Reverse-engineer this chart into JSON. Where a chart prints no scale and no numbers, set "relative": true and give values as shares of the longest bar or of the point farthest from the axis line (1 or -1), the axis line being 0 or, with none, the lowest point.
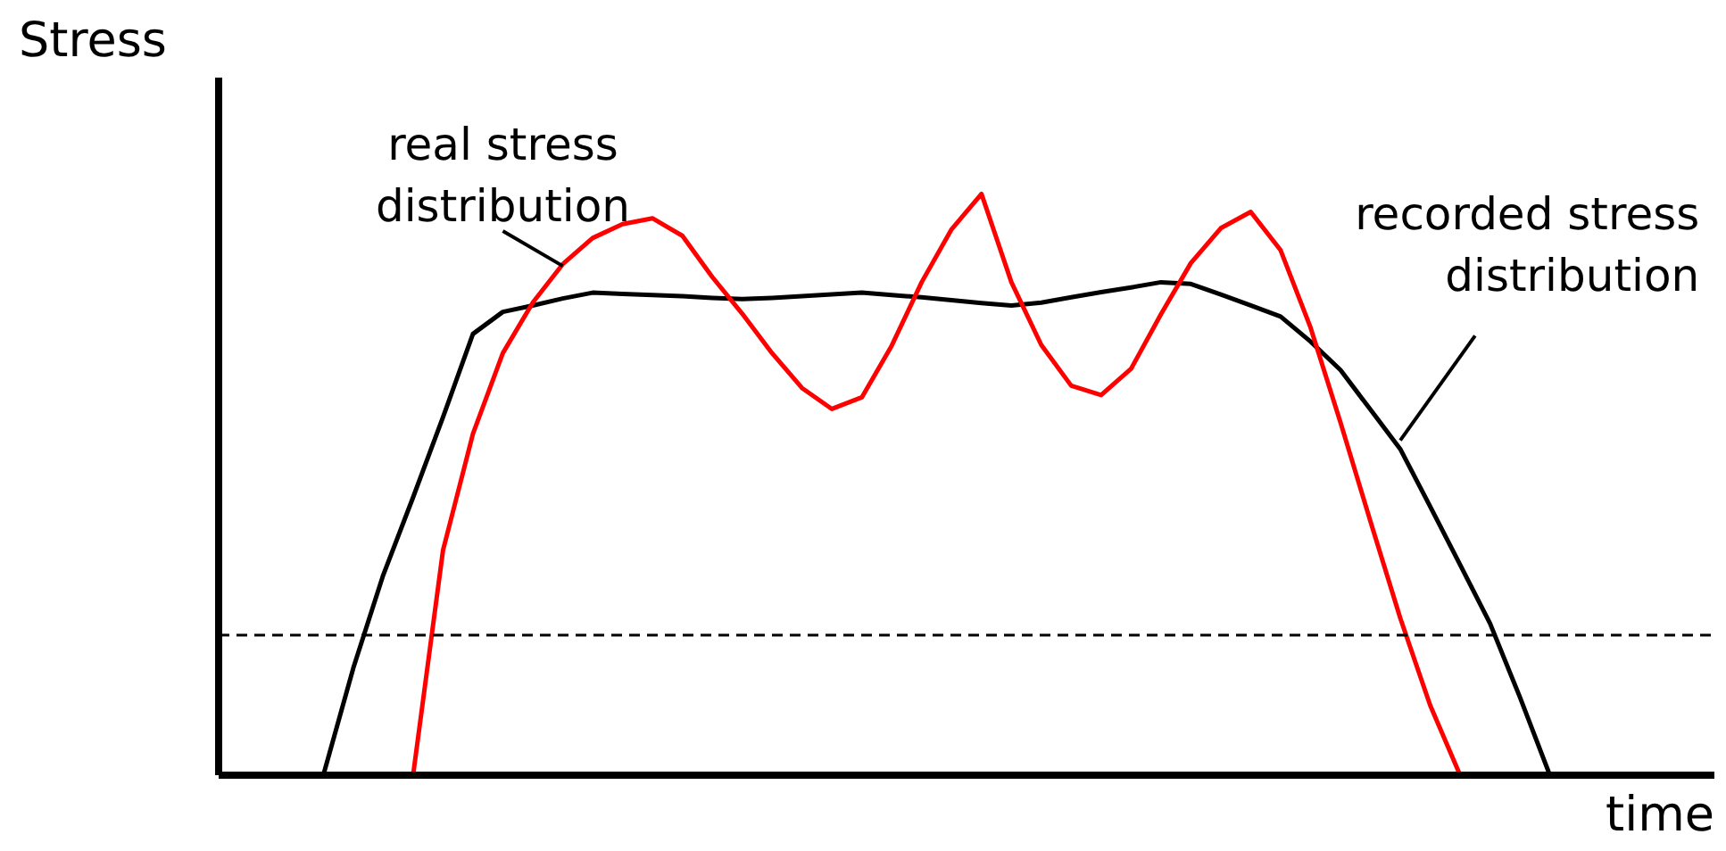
{
  "chart_data": {
    "type": "line",
    "relative": true,
    "ylabel": "Stress",
    "xlabel": "time",
    "categories": [
      null,
      null,
      null,
      null,
      null,
      null,
      null,
      null,
      null,
      null,
      null,
      null,
      null,
      null,
      null,
      null,
      null,
      null,
      null,
      null,
      null,
      null,
      null,
      null,
      null,
      null,
      null,
      null,
      null,
      null,
      null,
      null,
      null,
      null,
      null,
      null,
      null,
      null,
      null,
      null,
      null,
      null,
      null,
      null,
      null,
      null,
      null,
      null,
      null,
      null
    ],
    "series": [
      {
        "color": "#000000",
        "values": [
          null,
          null,
          null,
          0,
          0.184,
          0.344,
          0.478,
          0.616,
          0.759,
          0.797,
          0.808,
          0.82,
          0.83,
          0.828,
          0.826,
          0.824,
          0.821,
          0.819,
          0.821,
          0.824,
          0.827,
          0.83,
          0.826,
          0.822,
          0.817,
          0.812,
          0.808,
          0.813,
          0.822,
          0.831,
          0.839,
          0.848,
          0.845,
          0.827,
          0.808,
          0.789,
          0.746,
          0.697,
          0.629,
          0.561,
          0.462,
          0.362,
          0.261,
          0.134,
          0,
          null,
          null,
          null,
          null,
          null
        ]
      },
      {
        "color": "#ff0000",
        "values": [
          null,
          null,
          null,
          null,
          null,
          null,
          0,
          0.387,
          0.587,
          0.726,
          0.813,
          0.879,
          0.924,
          0.948,
          0.958,
          0.928,
          0.857,
          0.794,
          0.726,
          0.666,
          0.63,
          0.65,
          0.739,
          0.848,
          0.939,
          1.0,
          0.848,
          0.74,
          0.67,
          0.654,
          0.699,
          0.793,
          0.881,
          0.941,
          0.969,
          0.903,
          0.77,
          0.607,
          0.437,
          0.27,
          0.12,
          0,
          null,
          null,
          null,
          null,
          null,
          null,
          null,
          null
        ]
      }
    ],
    "ref_lines": [
      {
        "axis": "y",
        "value": 0.241,
        "line_style": "dashed",
        "color": "#000000"
      }
    ],
    "annotations": [
      "real stress\ndistribution",
      "recorded stress\ndistribution"
    ]
  }
}
